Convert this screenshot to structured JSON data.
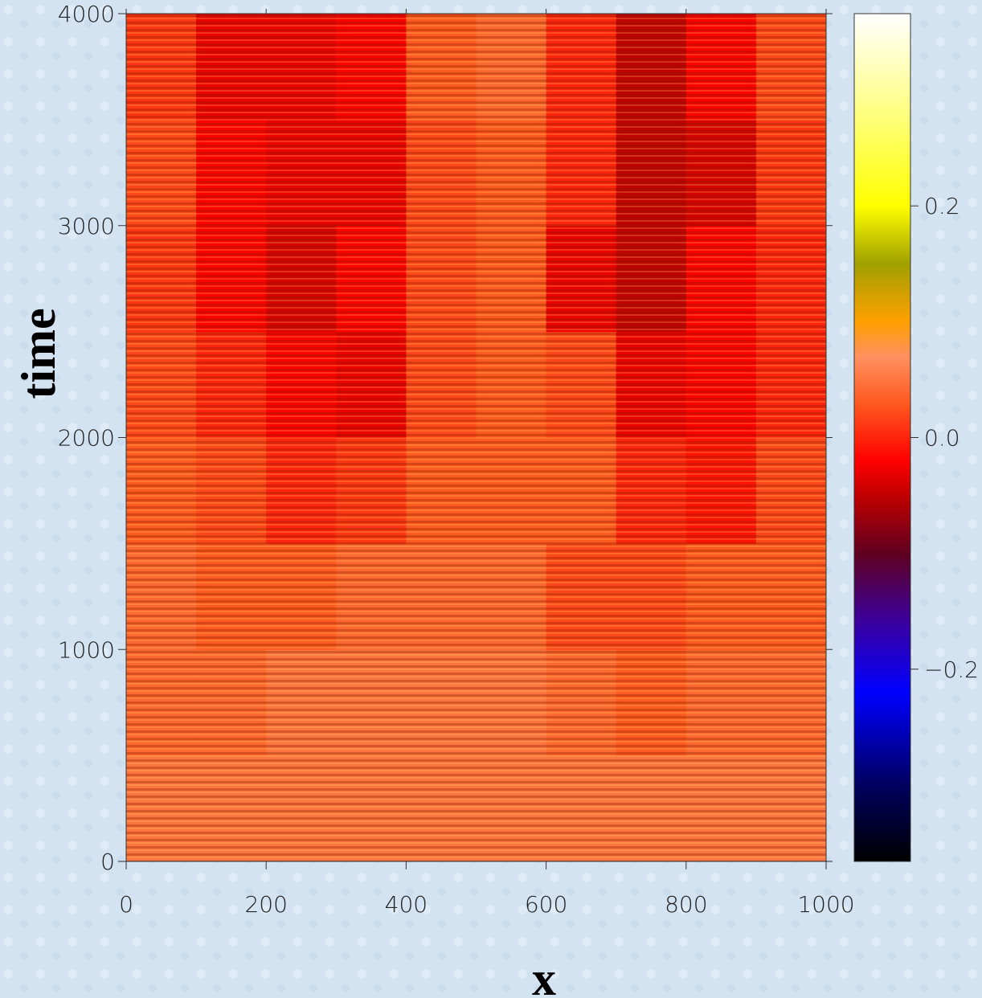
{
  "chart_data": {
    "type": "heatmap",
    "xlabel": "x",
    "ylabel": "time",
    "xlim": [
      0,
      1000
    ],
    "ylim": [
      0,
      4000
    ],
    "xticks": [
      0,
      200,
      400,
      600,
      800,
      1000
    ],
    "yticks": [
      0,
      1000,
      2000,
      3000,
      4000
    ],
    "x_edges": [
      0,
      100,
      200,
      300,
      400,
      500,
      600,
      700,
      800,
      900,
      1000
    ],
    "y_edges": [
      0,
      500,
      1000,
      1500,
      2000,
      2500,
      3000,
      3500,
      4000
    ],
    "z": [
      [
        0.05,
        0.05,
        0.05,
        0.05,
        0.05,
        0.05,
        0.05,
        0.05,
        0.05,
        0.05
      ],
      [
        0.04,
        0.04,
        0.05,
        0.05,
        0.05,
        0.05,
        0.04,
        0.03,
        0.04,
        0.04
      ],
      [
        0.04,
        0.03,
        0.03,
        0.04,
        0.04,
        0.04,
        0.02,
        0.02,
        0.03,
        0.03
      ],
      [
        0.03,
        0.02,
        0.0,
        0.01,
        0.03,
        0.03,
        0.03,
        0.0,
        -0.01,
        0.02
      ],
      [
        0.02,
        0.0,
        -0.02,
        -0.03,
        0.02,
        0.03,
        0.02,
        -0.03,
        -0.02,
        0.0
      ],
      [
        0.01,
        -0.02,
        -0.04,
        -0.02,
        0.02,
        0.03,
        -0.03,
        -0.05,
        -0.02,
        0.0
      ],
      [
        0.02,
        -0.02,
        -0.03,
        -0.03,
        0.02,
        0.03,
        0.0,
        -0.05,
        -0.04,
        0.01
      ],
      [
        0.01,
        -0.03,
        -0.03,
        -0.02,
        0.03,
        0.04,
        0.0,
        -0.05,
        -0.02,
        0.02
      ]
    ],
    "clim": [
      -0.366,
      0.366
    ],
    "cticks": [
      {
        "value": -0.2,
        "label": "−0.2"
      },
      {
        "value": 0.0,
        "label": "0.0"
      },
      {
        "value": 0.2,
        "label": "0.2"
      }
    ],
    "colorscale": [
      [
        -0.366,
        "#000000"
      ],
      [
        -0.3,
        "#000060"
      ],
      [
        -0.22,
        "#0000ff"
      ],
      [
        -0.16,
        "#3a00a0"
      ],
      [
        -0.1,
        "#600020"
      ],
      [
        -0.05,
        "#c00000"
      ],
      [
        -0.02,
        "#ff0000"
      ],
      [
        0.03,
        "#ff5a20"
      ],
      [
        0.07,
        "#ff9060"
      ],
      [
        0.1,
        "#ffa000"
      ],
      [
        0.15,
        "#a0a000"
      ],
      [
        0.2,
        "#ffff00"
      ],
      [
        0.28,
        "#ffff80"
      ],
      [
        0.366,
        "#ffffff"
      ]
    ]
  }
}
